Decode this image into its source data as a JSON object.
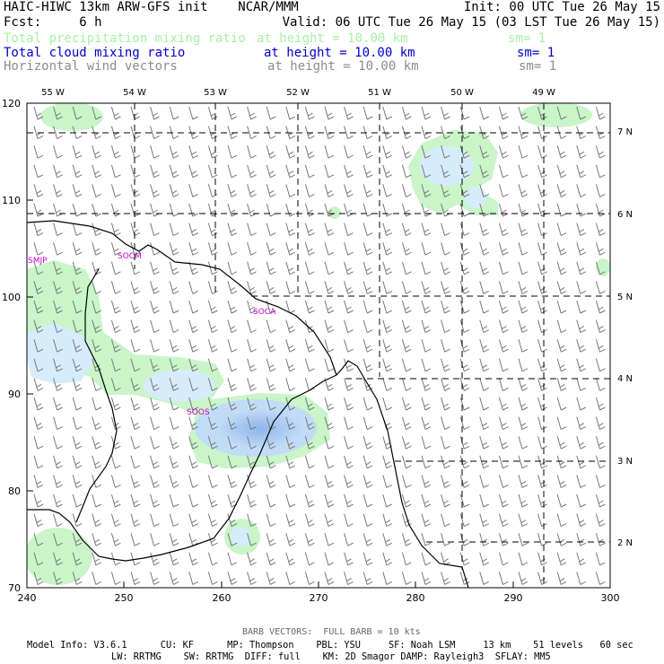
{
  "header": {
    "model_line": "HAIC-HIWC 13km ARW-GFS init    NCAR/MMM",
    "init_line": "Init: 00 UTC Tue 26 May 15",
    "fcst_line": "Fcst:     6 h",
    "valid_line": "Valid: 06 UTC Tue 26 May 15 (03 LST Tue 26 May 15)",
    "fields": [
      {
        "name": "Total precipitation mixing ratio",
        "height": "at height = 10.00 km",
        "sm": "sm= 1",
        "color": "#a6f2a6"
      },
      {
        "name": "Total cloud mixing ratio",
        "height": "at height = 10.00 km",
        "sm": "sm= 1",
        "color": "#0000cc"
      },
      {
        "name": "Horizontal wind vectors",
        "height": "at height = 10.00 km",
        "sm": "sm= 1",
        "color": "#8c8c8c"
      }
    ]
  },
  "map": {
    "x_ticks": [
      "240",
      "250",
      "260",
      "270",
      "280",
      "290",
      "300"
    ],
    "y_ticks": [
      "70",
      "80",
      "90",
      "100",
      "110",
      "120"
    ],
    "lon_labels": [
      "55 W",
      "54 W",
      "53 W",
      "52 W",
      "51 W",
      "50 W",
      "49 W"
    ],
    "lat_labels": [
      "2 N",
      "3 N",
      "4 N",
      "5 N",
      "6 N",
      "7 N"
    ],
    "stations": [
      "SMJP",
      "SOCM",
      "SOCA",
      "SOOS"
    ],
    "colors": {
      "precip_fill": "#c9f5c9",
      "cloud_light": "#d6ecfb",
      "cloud_dark": "#9cc0ef",
      "station": "#cc00cc",
      "coast": "#000000",
      "grid": "#000000"
    }
  },
  "footer": {
    "barb_note": "BARB VECTORS:  FULL BARB = 10 kts",
    "model_info_1": "Model Info: V3.6.1      CU: KF      MP: Thompson    PBL: YSU     SF: Noah LSM     13 km    51 levels   60 sec",
    "model_info_2": "LW: RRTMG    SW: RRTMG  DIFF: full    KM: 2D Smagor DAMP: Rayleigh3  SFLAY: MM5"
  }
}
